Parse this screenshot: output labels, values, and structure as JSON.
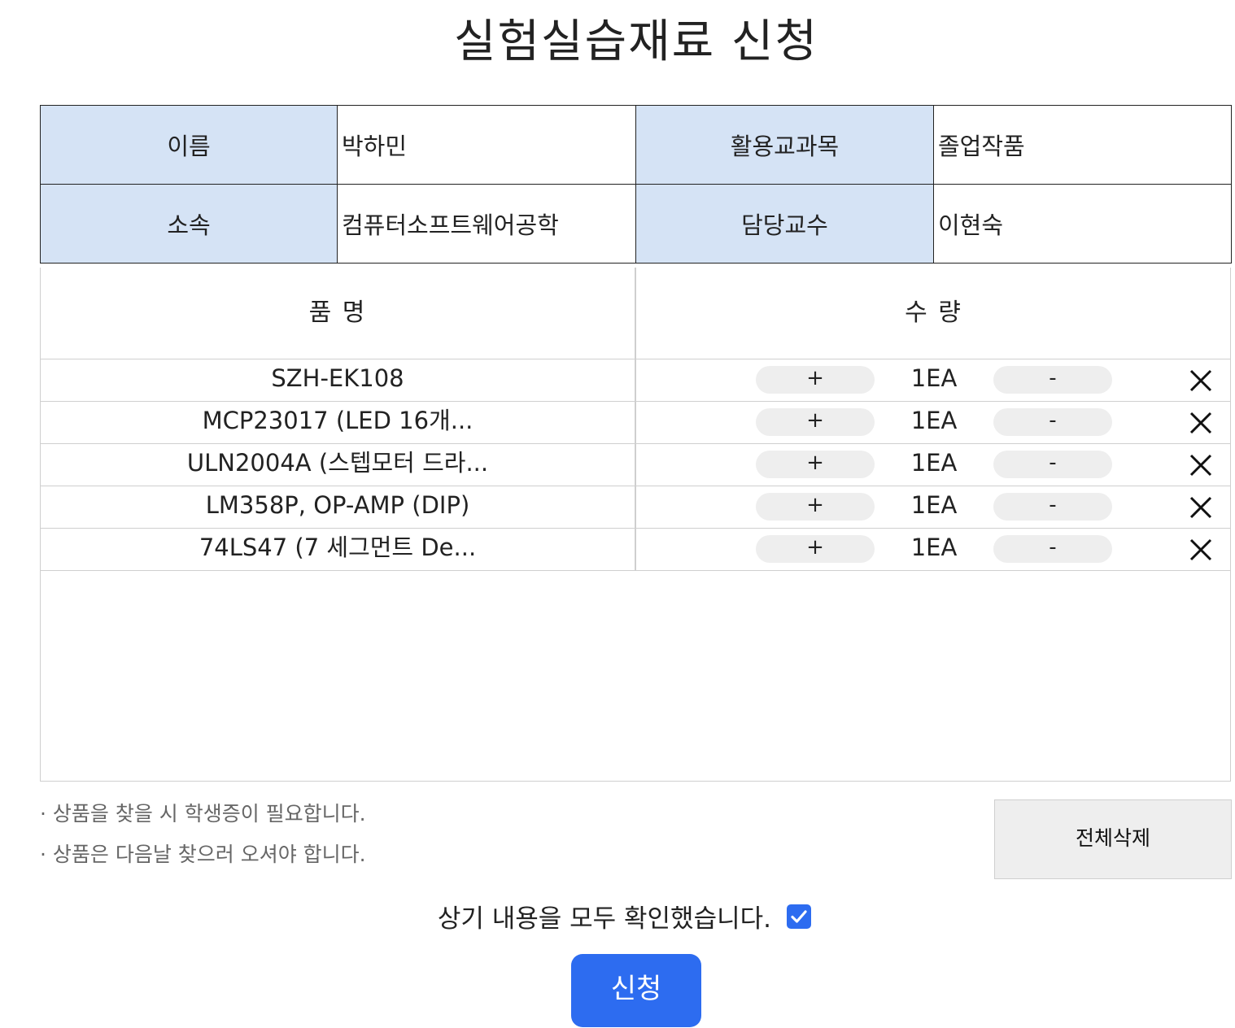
{
  "page": {
    "title": "실험실습재료 신청"
  },
  "info": {
    "name_label": "이름",
    "name_value": "박하민",
    "subject_label": "활용교과목",
    "subject_value": "졸업작품",
    "dept_label": "소속",
    "dept_value": "컴퓨터소프트웨어공학",
    "professor_label": "담당교수",
    "professor_value": "이현숙"
  },
  "items_table": {
    "header_name": "품 명",
    "header_qty": "수 량",
    "plus_label": "+",
    "minus_label": "-",
    "rows": [
      {
        "name": "SZH-EK108",
        "qty": "1EA"
      },
      {
        "name": "MCP23017 (LED 16개...",
        "qty": "1EA"
      },
      {
        "name": "ULN2004A (스텝모터 드라...",
        "qty": "1EA"
      },
      {
        "name": "LM358P, OP-AMP (DIP)",
        "qty": "1EA"
      },
      {
        "name": "74LS47 (7 세그먼트 De...",
        "qty": "1EA"
      }
    ]
  },
  "notes": [
    "· 상품을 찾을 시 학생증이 필요합니다.",
    "· 상품은 다음날 찾으러 오셔야 합니다."
  ],
  "clear_all_label": "전체삭제",
  "confirm": {
    "label": "상기 내용을 모두 확인했습니다.",
    "checked": true
  },
  "submit_label": "신청",
  "colors": {
    "label_bg": "#d5e3f5",
    "accent": "#2d6cf0",
    "pill_bg": "#eeeeee",
    "border": "#cfcfcf"
  }
}
